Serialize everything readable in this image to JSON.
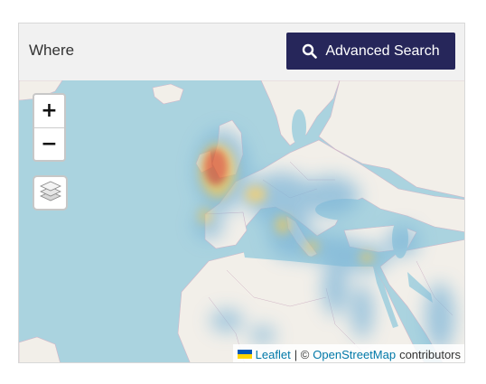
{
  "header": {
    "label": "Where",
    "search_button": {
      "label": "Advanced Search",
      "icon": "search-icon"
    }
  },
  "map": {
    "zoom_in": "+",
    "zoom_out": "−",
    "layers_icon": "layers-icon",
    "attribution": {
      "leaflet": "Leaflet",
      "separator": "| ©",
      "osm": "OpenStreetMap",
      "suffix": "contributors"
    }
  },
  "colors": {
    "button_bg": "#26265a",
    "sea": "#aad3df",
    "land": "#f2efe9",
    "link": "#0078a8",
    "heat_hot": "#d9542a"
  }
}
